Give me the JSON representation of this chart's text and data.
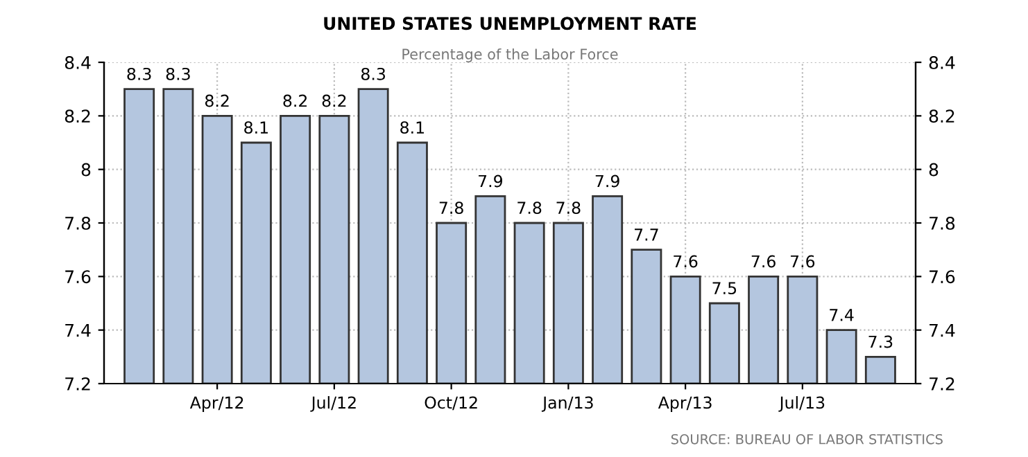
{
  "chart_data": {
    "type": "bar",
    "title": "UNITED STATES UNEMPLOYMENT RATE",
    "subtitle": "Percentage of the Labor Force",
    "categories": [
      null,
      null,
      "Apr/12",
      null,
      null,
      "Jul/12",
      null,
      null,
      "Oct/12",
      null,
      null,
      "Jan/13",
      null,
      null,
      "Apr/13",
      null,
      null,
      "Jul/13",
      null,
      null
    ],
    "values": [
      8.3,
      8.3,
      8.2,
      8.1,
      8.2,
      8.2,
      8.3,
      8.1,
      7.8,
      7.9,
      7.8,
      7.8,
      7.9,
      7.7,
      7.6,
      7.5,
      7.6,
      7.6,
      7.4,
      7.3
    ],
    "color": "#b4c6df",
    "data_labels": true,
    "ylim": [
      7.2,
      8.4
    ],
    "yticks": [
      7.2,
      7.4,
      7.6,
      7.8,
      8,
      8.2,
      8.4
    ],
    "y2lim": [
      7.2,
      8.4
    ],
    "y2ticks": [
      7.2,
      7.4,
      7.6,
      7.8,
      8,
      8.2,
      8.4
    ],
    "grid": true,
    "legend": false,
    "annotations": [
      "SOURCE: BUREAU OF LABOR STATISTICS"
    ]
  }
}
